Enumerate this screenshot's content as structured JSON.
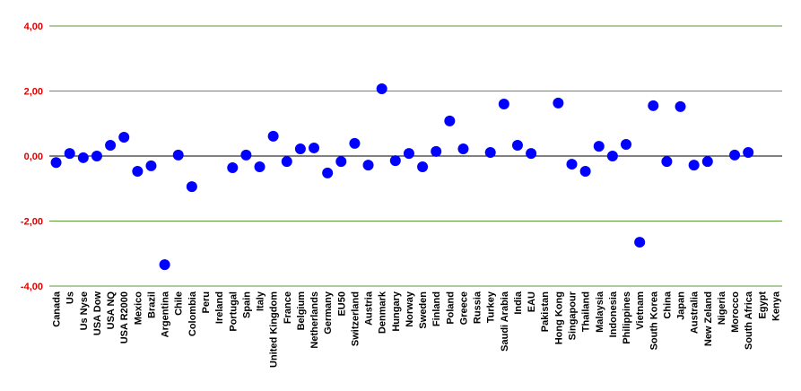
{
  "chart_data": {
    "type": "scatter",
    "categories": [
      "Canada",
      "Us",
      "Us Nyse",
      "USA Dow",
      "USA NQ",
      "USA R2000",
      "Mexico",
      "Brazil",
      "Argentina",
      "Chile",
      "Colombia",
      "Peru",
      "Ireland",
      "Portugal",
      "Spain",
      "Italy",
      "United Kingdom",
      "France",
      "Belgium",
      "Netherlands",
      "Germany",
      "EU50",
      "Switzerland",
      "Austria",
      "Denmark",
      "Hungary",
      "Norway",
      "Sweden",
      "Finland",
      "Poland",
      "Greece",
      "Russia",
      "Turkey",
      "Saudi Arabia",
      "India",
      "EAU",
      "Pakistan",
      "Hong Kong",
      "Singapour",
      "Thailand",
      "Malaysia",
      "Indonesia",
      "Philippines",
      "Vietnam",
      "South Korea",
      "China",
      "Japan",
      "Australia",
      "New Zeland",
      "Nigeria",
      "Morocco",
      "South Africa",
      "Egypt",
      "Kenya"
    ],
    "values": [
      -0.2,
      0.08,
      -0.05,
      0.0,
      0.33,
      0.58,
      -0.47,
      -0.3,
      -3.34,
      0.03,
      -0.94,
      null,
      null,
      -0.36,
      0.03,
      -0.33,
      0.61,
      -0.17,
      0.22,
      0.25,
      -0.52,
      -0.17,
      0.39,
      -0.28,
      2.07,
      -0.14,
      0.08,
      -0.33,
      0.14,
      1.08,
      0.22,
      null,
      0.11,
      1.6,
      0.33,
      0.08,
      null,
      1.63,
      -0.25,
      -0.47,
      0.3,
      0.0,
      0.36,
      -2.65,
      1.55,
      -0.17,
      1.52,
      -0.28,
      -0.17,
      null,
      0.03,
      0.11,
      null,
      null
    ],
    "color": "#0000ff",
    "ylim": [
      -4,
      4
    ],
    "yticks": [
      {
        "value": -4,
        "label": "-4,00"
      },
      {
        "value": -2,
        "label": "-2,00"
      },
      {
        "value": 0,
        "label": "0,00"
      },
      {
        "value": 2,
        "label": "2,00"
      },
      {
        "value": 4,
        "label": "4,00"
      }
    ],
    "grid": true
  }
}
